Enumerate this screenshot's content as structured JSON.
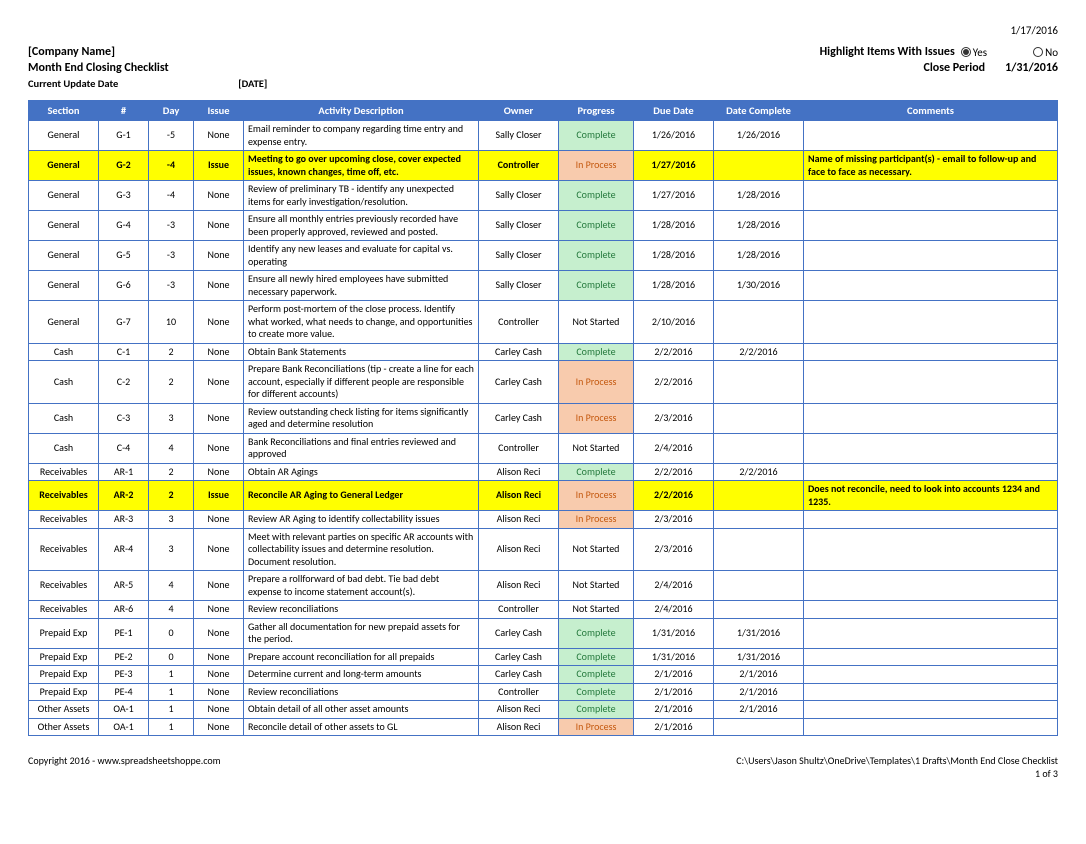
{
  "page_date": "1/17/2016",
  "company_name": "[Company Name]",
  "title": "Month End Closing Checklist",
  "highlight_label": "Highlight Items With Issues",
  "highlight_yes": "Yes",
  "highlight_no": "No",
  "highlight_selected": "yes",
  "close_period_label": "Close Period",
  "close_period_value": "1/31/2016",
  "update_date_label": "Current Update Date",
  "update_date_value": "[DATE]",
  "columns": [
    "Section",
    "#",
    "Day",
    "Issue",
    "Activity Description",
    "Owner",
    "Progress",
    "Due Date",
    "Date Complete",
    "Comments"
  ],
  "rows": [
    {
      "section": "General",
      "num": "G-1",
      "day": "-5",
      "issue": "None",
      "activity": "Email reminder to company regarding time entry and expense entry.",
      "owner": "Sally Closer",
      "progress": "Complete",
      "due": "1/26/2016",
      "complete": "1/26/2016",
      "comments": "",
      "is_issue": false
    },
    {
      "section": "General",
      "num": "G-2",
      "day": "-4",
      "issue": "Issue",
      "activity": "Meeting to go over upcoming close, cover expected issues, known changes, time off, etc.",
      "owner": "Controller",
      "progress": "In Process",
      "due": "1/27/2016",
      "complete": "",
      "comments": "Name of missing participant(s) - email to follow-up and face to face as necessary.",
      "is_issue": true
    },
    {
      "section": "General",
      "num": "G-3",
      "day": "-4",
      "issue": "None",
      "activity": "Review of preliminary TB - identify any unexpected items for early investigation/resolution.",
      "owner": "Sally Closer",
      "progress": "Complete",
      "due": "1/27/2016",
      "complete": "1/28/2016",
      "comments": "",
      "is_issue": false
    },
    {
      "section": "General",
      "num": "G-4",
      "day": "-3",
      "issue": "None",
      "activity": "Ensure all monthly entries previously recorded have been properly approved, reviewed and posted.",
      "owner": "Sally Closer",
      "progress": "Complete",
      "due": "1/28/2016",
      "complete": "1/28/2016",
      "comments": "",
      "is_issue": false
    },
    {
      "section": "General",
      "num": "G-5",
      "day": "-3",
      "issue": "None",
      "activity": "Identify any new leases and evaluate for capital vs. operating",
      "owner": "Sally Closer",
      "progress": "Complete",
      "due": "1/28/2016",
      "complete": "1/28/2016",
      "comments": "",
      "is_issue": false
    },
    {
      "section": "General",
      "num": "G-6",
      "day": "-3",
      "issue": "None",
      "activity": "Ensure all newly hired employees have submitted necessary paperwork.",
      "owner": "Sally Closer",
      "progress": "Complete",
      "due": "1/28/2016",
      "complete": "1/30/2016",
      "comments": "",
      "is_issue": false
    },
    {
      "section": "General",
      "num": "G-7",
      "day": "10",
      "issue": "None",
      "activity": "Perform post-mortem of the close process.  Identify what worked, what needs to change, and opportunities to create more value.",
      "owner": "Controller",
      "progress": "Not Started",
      "due": "2/10/2016",
      "complete": "",
      "comments": "",
      "is_issue": false
    },
    {
      "section": "Cash",
      "num": "C-1",
      "day": "2",
      "issue": "None",
      "activity": "Obtain Bank Statements",
      "owner": "Carley Cash",
      "progress": "Complete",
      "due": "2/2/2016",
      "complete": "2/2/2016",
      "comments": "",
      "is_issue": false
    },
    {
      "section": "Cash",
      "num": "C-2",
      "day": "2",
      "issue": "None",
      "activity": "Prepare Bank Reconciliations (tip - create a line for each account, especially if different people are responsible for different accounts)",
      "owner": "Carley Cash",
      "progress": "In Process",
      "due": "2/2/2016",
      "complete": "",
      "comments": "",
      "is_issue": false
    },
    {
      "section": "Cash",
      "num": "C-3",
      "day": "3",
      "issue": "None",
      "activity": "Review outstanding check listing for items significantly aged and determine resolution",
      "owner": "Carley Cash",
      "progress": "In Process",
      "due": "2/3/2016",
      "complete": "",
      "comments": "",
      "is_issue": false
    },
    {
      "section": "Cash",
      "num": "C-4",
      "day": "4",
      "issue": "None",
      "activity": "Bank Reconciliations and final entries reviewed and approved",
      "owner": "Controller",
      "progress": "Not Started",
      "due": "2/4/2016",
      "complete": "",
      "comments": "",
      "is_issue": false
    },
    {
      "section": "Receivables",
      "num": "AR-1",
      "day": "2",
      "issue": "None",
      "activity": "Obtain AR Agings",
      "owner": "Alison Reci",
      "progress": "Complete",
      "due": "2/2/2016",
      "complete": "2/2/2016",
      "comments": "",
      "is_issue": false
    },
    {
      "section": "Receivables",
      "num": "AR-2",
      "day": "2",
      "issue": "Issue",
      "activity": "Reconcile AR Aging to General Ledger",
      "owner": "Alison Reci",
      "progress": "In Process",
      "due": "2/2/2016",
      "complete": "",
      "comments": "Does not reconcile, need to look into accounts 1234 and 1235.",
      "is_issue": true
    },
    {
      "section": "Receivables",
      "num": "AR-3",
      "day": "3",
      "issue": "None",
      "activity": "Review AR Aging to identify collectability issues",
      "owner": "Alison Reci",
      "progress": "In Process",
      "due": "2/3/2016",
      "complete": "",
      "comments": "",
      "is_issue": false
    },
    {
      "section": "Receivables",
      "num": "AR-4",
      "day": "3",
      "issue": "None",
      "activity": "Meet with relevant parties on specific AR accounts with collectability issues and determine resolution.  Document resolution.",
      "owner": "Alison Reci",
      "progress": "Not Started",
      "due": "2/3/2016",
      "complete": "",
      "comments": "",
      "is_issue": false
    },
    {
      "section": "Receivables",
      "num": "AR-5",
      "day": "4",
      "issue": "None",
      "activity": "Prepare a rollforward of bad debt.  Tie bad debt expense to income statement account(s).",
      "owner": "Alison Reci",
      "progress": "Not Started",
      "due": "2/4/2016",
      "complete": "",
      "comments": "",
      "is_issue": false
    },
    {
      "section": "Receivables",
      "num": "AR-6",
      "day": "4",
      "issue": "None",
      "activity": "Review reconciliations",
      "owner": "Controller",
      "progress": "Not Started",
      "due": "2/4/2016",
      "complete": "",
      "comments": "",
      "is_issue": false
    },
    {
      "section": "Prepaid Exp",
      "num": "PE-1",
      "day": "0",
      "issue": "None",
      "activity": "Gather all documentation for new prepaid assets for the period.",
      "owner": "Carley Cash",
      "progress": "Complete",
      "due": "1/31/2016",
      "complete": "1/31/2016",
      "comments": "",
      "is_issue": false
    },
    {
      "section": "Prepaid Exp",
      "num": "PE-2",
      "day": "0",
      "issue": "None",
      "activity": "Prepare account reconciliation for all prepaids",
      "owner": "Carley Cash",
      "progress": "Complete",
      "due": "1/31/2016",
      "complete": "1/31/2016",
      "comments": "",
      "is_issue": false
    },
    {
      "section": "Prepaid Exp",
      "num": "PE-3",
      "day": "1",
      "issue": "None",
      "activity": "Determine current and long-term amounts",
      "owner": "Carley Cash",
      "progress": "Complete",
      "due": "2/1/2016",
      "complete": "2/1/2016",
      "comments": "",
      "is_issue": false
    },
    {
      "section": "Prepaid Exp",
      "num": "PE-4",
      "day": "1",
      "issue": "None",
      "activity": "Review reconciliations",
      "owner": "Controller",
      "progress": "Complete",
      "due": "2/1/2016",
      "complete": "2/1/2016",
      "comments": "",
      "is_issue": false
    },
    {
      "section": "Other Assets",
      "num": "OA-1",
      "day": "1",
      "issue": "None",
      "activity": "Obtain detail of all other asset amounts",
      "owner": "Alison Reci",
      "progress": "Complete",
      "due": "2/1/2016",
      "complete": "2/1/2016",
      "comments": "",
      "is_issue": false
    },
    {
      "section": "Other Assets",
      "num": "OA-1",
      "day": "1",
      "issue": "None",
      "activity": "Reconcile detail of other assets to GL",
      "owner": "Alison Reci",
      "progress": "In Process",
      "due": "2/1/2016",
      "complete": "",
      "comments": "",
      "is_issue": false
    }
  ],
  "footer": {
    "copyright": "Copyright 2016 - www.spreadsheetshoppe.com",
    "path": "C:\\Users\\Jason Shultz\\OneDrive\\Templates\\1 Drafts\\Month End Close Checklist",
    "page": "1 of 3"
  },
  "colors": {
    "header_bg": "#4472c4",
    "header_fg": "#ffffff",
    "border": "#4472c4",
    "issue_highlight": "#ffff00",
    "complete_bg": "#c6efce",
    "complete_fg": "#267a3e",
    "inprocess_bg": "#f8cbad",
    "inprocess_fg": "#c55a11"
  }
}
